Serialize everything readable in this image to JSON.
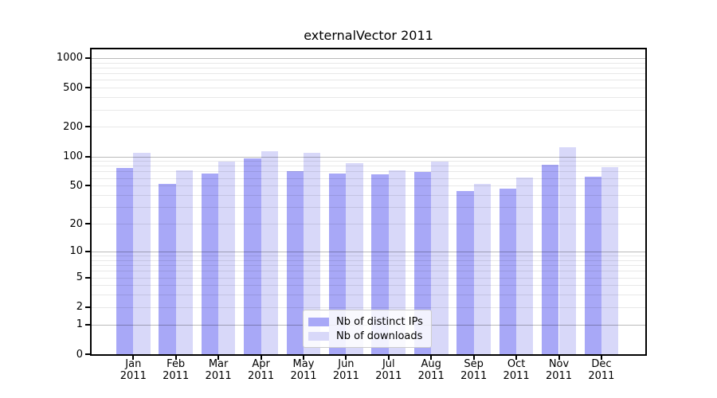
{
  "chart_data": {
    "type": "bar",
    "title": "externalVector 2011",
    "categories": [
      "Jan",
      "Feb",
      "Mar",
      "Apr",
      "May",
      "Jun",
      "Jul",
      "Aug",
      "Sep",
      "Oct",
      "Nov",
      "Dec"
    ],
    "category_year": "2011",
    "series": [
      {
        "name": "Nb of distinct IPs",
        "color": "#a8a8f7",
        "values": [
          76,
          52,
          67,
          96,
          71,
          67,
          65,
          69,
          44,
          47,
          82,
          62
        ]
      },
      {
        "name": "Nb of downloads",
        "color": "#d8d8f9",
        "values": [
          109,
          72,
          88,
          112,
          109,
          85,
          72,
          89,
          52,
          61,
          123,
          78
        ]
      }
    ],
    "yscale": "log10(value+1)",
    "ylim": [
      0,
      1230
    ],
    "yticks": [
      0,
      1,
      2,
      5,
      10,
      20,
      50,
      100,
      200,
      500,
      1000
    ],
    "major_gridlines": [
      1,
      10,
      100,
      1000
    ],
    "minor_gridlines": [
      2,
      3,
      4,
      5,
      6,
      7,
      8,
      9,
      20,
      30,
      40,
      50,
      60,
      70,
      80,
      90,
      200,
      300,
      400,
      500,
      600,
      700,
      800,
      900
    ],
    "grid": true,
    "legend_position": "lower center",
    "xlabel": "",
    "ylabel": ""
  },
  "colors": {
    "axis": "#000000",
    "background": "#ffffff",
    "major_grid": "#bdbdbd",
    "minor_grid": "#e8e8e8"
  }
}
